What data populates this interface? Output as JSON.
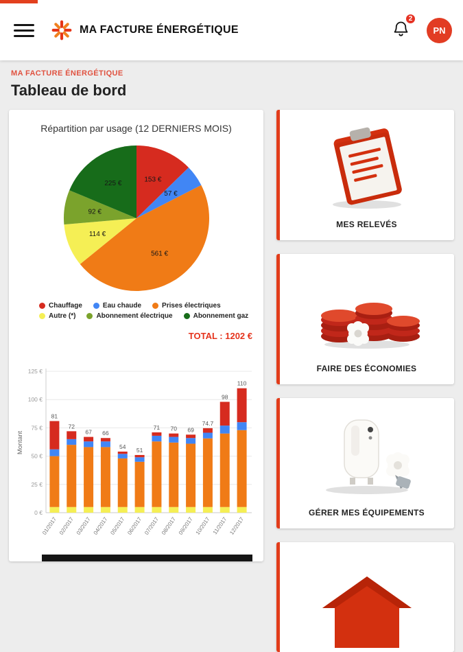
{
  "brand": {
    "accent_color": "#e23c1a",
    "bar_background": "#ffffff"
  },
  "app_bar": {
    "title": "MA FACTURE ÉNERGÉTIQUE",
    "notification_count": "2",
    "avatar_initials": "PN"
  },
  "page": {
    "breadcrumb": "MA FACTURE ÉNERGÉTIQUE",
    "title": "Tableau de bord"
  },
  "chart_data": [
    {
      "type": "pie",
      "title": "Répartition par usage (12 DERNIERS MOIS)",
      "labels": [
        "Chauffage",
        "Eau chaude",
        "Prises électriques",
        "Autre (*)",
        "Abonnement électrique",
        "Abonnement gaz"
      ],
      "values": [
        153,
        57,
        561,
        114,
        92,
        225
      ],
      "value_labels": [
        "153 €",
        "57 €",
        "561 €",
        "114 €",
        "92 €",
        "225 €"
      ],
      "colors": [
        "#d62b1f",
        "#4186f5",
        "#f07b16",
        "#f5ef55",
        "#7ba32c",
        "#176c1a"
      ],
      "total_label": "TOTAL : 1202 €",
      "legend_position": "bottom"
    },
    {
      "type": "bar",
      "stacked": true,
      "categories": [
        "01/2017",
        "02/2017",
        "03/2017",
        "04/2017",
        "05/2017",
        "06/2017",
        "07/2017",
        "08/2017",
        "09/2017",
        "10/2017",
        "11/2017",
        "12/2017"
      ],
      "series": [
        {
          "name": "Autre (*)",
          "color": "#f5ef55",
          "values": [
            5,
            5,
            5,
            5,
            5,
            5,
            5,
            5,
            5,
            5,
            5,
            5
          ]
        },
        {
          "name": "Prises électriques",
          "color": "#f07b16",
          "values": [
            45,
            55,
            53,
            53,
            43,
            40,
            58,
            57,
            56,
            60.7,
            65,
            68
          ]
        },
        {
          "name": "Eau chaude",
          "color": "#4186f5",
          "values": [
            6,
            5,
            5,
            5,
            4,
            4,
            5,
            5,
            5,
            5,
            7,
            7
          ]
        },
        {
          "name": "Chauffage",
          "color": "#d62b1f",
          "values": [
            25,
            7,
            4,
            3,
            2,
            2,
            3,
            3,
            3,
            4,
            21,
            30
          ]
        }
      ],
      "totals": [
        "81",
        "72",
        "67",
        "66",
        "54",
        "51",
        "71",
        "70",
        "69",
        "74.7",
        "98",
        "110"
      ],
      "ylabel": "Montant",
      "yticks": [
        "0 €",
        "25 €",
        "50 €",
        "75 €",
        "100 €",
        "125 €"
      ],
      "ylim": [
        0,
        125
      ],
      "grid": true
    }
  ],
  "cards": [
    {
      "label": "MES RELEVÉS",
      "icon": "clipboard-illustration"
    },
    {
      "label": "FAIRE DES ÉCONOMIES",
      "icon": "coins-illustration"
    },
    {
      "label": "GÉRER MES ÉQUIPEMENTS",
      "icon": "appliances-illustration"
    },
    {
      "label": "",
      "icon": "house-illustration"
    }
  ]
}
